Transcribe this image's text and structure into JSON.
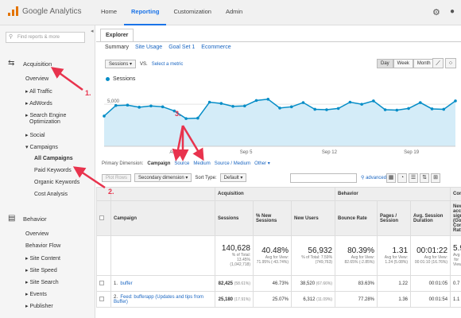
{
  "app": {
    "brand": "Google Analytics"
  },
  "topnav": [
    {
      "label": "Home",
      "active": false
    },
    {
      "label": "Reporting",
      "active": true
    },
    {
      "label": "Customization",
      "active": false
    },
    {
      "label": "Admin",
      "active": false
    }
  ],
  "sidebar": {
    "search_placeholder": "Find reports & more",
    "acquisition": "Acquisition",
    "acq_items": [
      "Overview",
      "All Traffic",
      "AdWords",
      "Search Engine",
      "Optimization",
      "Social",
      "Campaigns",
      "All Campaigns",
      "Paid Keywords",
      "Organic Keywords",
      "Cost Analysis"
    ],
    "behavior": "Behavior",
    "beh_items": [
      "Overview",
      "Behavior Flow",
      "Site Content",
      "Site Speed",
      "Site Search",
      "Events",
      "Publisher"
    ]
  },
  "explorer": {
    "tab": "Explorer",
    "subtabs": [
      "Summary",
      "Site Usage",
      "Goal Set 1",
      "Ecommerce"
    ],
    "metric_dropdown": "Sessions",
    "vs": "VS.",
    "select_metric": "Select a metric",
    "range_buttons": [
      "Day",
      "Week",
      "Month"
    ],
    "legend": "Sessions",
    "y_tick": "5,000"
  },
  "chart_data": {
    "type": "area",
    "series": [
      {
        "name": "Sessions",
        "values": [
          3600,
          4850,
          4900,
          4650,
          4800,
          4700,
          4200,
          3300,
          3350,
          5250,
          5100,
          4750,
          4800,
          5450,
          5600,
          4550,
          4700,
          5200,
          4400,
          4350,
          4500,
          5250,
          5000,
          5400,
          4350,
          4300,
          4500,
          5200,
          4450,
          4400,
          5400
        ]
      }
    ],
    "x_ticks": [
      "Aug",
      "Sep 5",
      "Sep 12",
      "Sep 19"
    ],
    "ylim": [
      0,
      7000
    ],
    "y_ticks": [
      "5,000"
    ],
    "color": "#058dc7",
    "fill": "#d4ecf8"
  },
  "dimensions": {
    "label": "Primary Dimension:",
    "active": "Campaign",
    "others": [
      "Source",
      "Medium",
      "Source / Medium",
      "Other"
    ]
  },
  "table_toolbar": {
    "plot_rows": "Plot Rows",
    "secondary": "Secondary dimension",
    "sort_label": "Sort Type:",
    "sort_value": "Default",
    "advanced": "advanced"
  },
  "table": {
    "groups": [
      "Acquisition",
      "Behavior",
      "Convers"
    ],
    "headers": [
      "Campaign",
      "Sessions",
      "% New Sessions",
      "New Users",
      "Bounce Rate",
      "Pages / Session",
      "Avg. Session Duration",
      "New account signup (Goal Conversion Rate)"
    ],
    "totals": [
      {
        "big": "140,628",
        "sm": "% of Total: 13.45% (1,042,718)"
      },
      {
        "big": "40.48%",
        "sm": "Avg for View: 71.95% (-43.74%)"
      },
      {
        "big": "56,932",
        "sm": "% of Total: 7.59% (749,763)"
      },
      {
        "big": "80.39%",
        "sm": "Avg for View: 82.65% (-2.85%)"
      },
      {
        "big": "1.31",
        "sm": "Avg for View: 1.24 (5.08%)"
      },
      {
        "big": "00:01:22",
        "sm": "Avg for View: 00:01:10 (16.76%)"
      },
      {
        "big": "5.93",
        "sm": "Avg for View:"
      }
    ],
    "rows": [
      {
        "idx": "1.",
        "name": "buffer",
        "sessions": "82,425",
        "sessions_pct": "(58.61%)",
        "new_sess": "46.73%",
        "new_users": "38,520",
        "new_users_pct": "(67.66%)",
        "bounce": "83.63%",
        "pages": "1.22",
        "dur": "00:01:05",
        "conv": "0.7"
      },
      {
        "idx": "2.",
        "name": "Feed: bufferapp (Updates and tips from Buffer)",
        "sessions": "25,180",
        "sessions_pct": "(17.91%)",
        "new_sess": "25.07%",
        "new_users": "6,312",
        "new_users_pct": "(11.09%)",
        "bounce": "77.28%",
        "pages": "1.36",
        "dur": "00:01:54",
        "conv": "1.1"
      }
    ]
  },
  "annotations": [
    "1.",
    "2.",
    "3."
  ]
}
